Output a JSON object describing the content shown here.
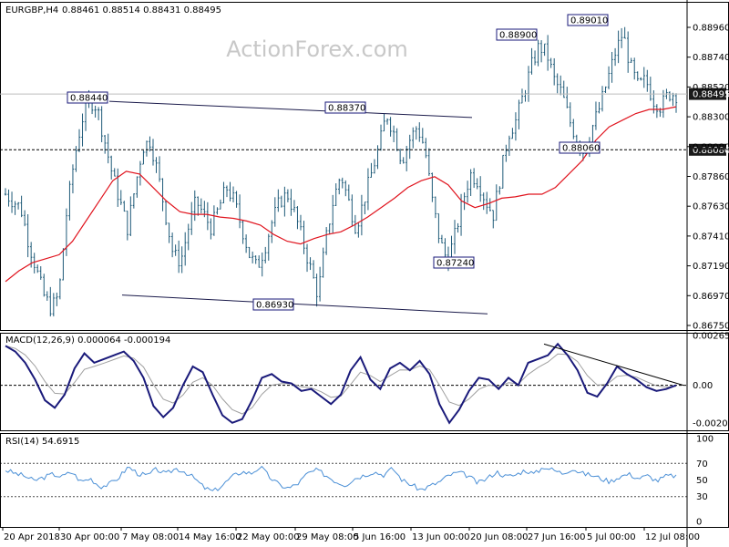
{
  "header": {
    "symbol_label": "EURGBP,H4",
    "ohlc": "0.88461 0.88514 0.88431 0.88495"
  },
  "watermark": "ActionForex.com",
  "colors": {
    "background": "#ffffff",
    "candle": "#1e5a78",
    "moving_average": "#e0141e",
    "macd_line": "#1a1a7a",
    "signal_line": "#a0a0a0",
    "rsi_line": "#4a8fd6",
    "price_tag": "#1a1a1a",
    "annotation_border": "#1a1a7a"
  },
  "chart_data": [
    {
      "type": "candlestick",
      "pair": "EURGBP",
      "timeframe": "H4",
      "ylim": [
        0.8674,
        0.8918
      ],
      "y_ticks": [
        "0.88960",
        "0.88740",
        "0.88520",
        "0.88300",
        "0.88080",
        "0.87860",
        "0.87630",
        "0.87410",
        "0.87190",
        "0.86970",
        "0.86750"
      ],
      "x_ticks": [
        "20 Apr 2018",
        "30 Apr 00:00",
        "7 May 08:00",
        "14 May 16:00",
        "22 May 00:00",
        "29 May 08:00",
        "5 Jun 16:00",
        "13 Jun 00:00",
        "20 Jun 08:00",
        "27 Jun 16:00",
        "5 Jul 00:00",
        "12 Jul 08:00"
      ],
      "closes_approx": [
        0.8775,
        0.877,
        0.8765,
        0.874,
        0.872,
        0.87,
        0.869,
        0.87,
        0.876,
        0.88,
        0.883,
        0.8845,
        0.884,
        0.8815,
        0.879,
        0.877,
        0.875,
        0.878,
        0.881,
        0.8815,
        0.879,
        0.876,
        0.873,
        0.8725,
        0.875,
        0.877,
        0.876,
        0.875,
        0.8765,
        0.878,
        0.877,
        0.875,
        0.873,
        0.872,
        0.8735,
        0.8755,
        0.877,
        0.8775,
        0.876,
        0.874,
        0.872,
        0.87,
        0.874,
        0.877,
        0.879,
        0.877,
        0.875,
        0.877,
        0.879,
        0.881,
        0.8835,
        0.882,
        0.88,
        0.8815,
        0.8825,
        0.881,
        0.877,
        0.874,
        0.8725,
        0.8745,
        0.877,
        0.879,
        0.8785,
        0.877,
        0.876,
        0.879,
        0.882,
        0.883,
        0.885,
        0.887,
        0.8885,
        0.888,
        0.886,
        0.885,
        0.883,
        0.8815,
        0.8805,
        0.8825,
        0.884,
        0.886,
        0.888,
        0.8895,
        0.887,
        0.8855,
        0.886,
        0.8845,
        0.884,
        0.885,
        0.8849
      ],
      "moving_average_approx": [
        0.871,
        0.8718,
        0.8724,
        0.8727,
        0.873,
        0.874,
        0.8755,
        0.877,
        0.8785,
        0.8792,
        0.879,
        0.878,
        0.877,
        0.8762,
        0.876,
        0.876,
        0.8758,
        0.8757,
        0.8755,
        0.8752,
        0.8745,
        0.874,
        0.8738,
        0.8742,
        0.8745,
        0.8747,
        0.8752,
        0.8758,
        0.8765,
        0.8772,
        0.878,
        0.8785,
        0.8788,
        0.8782,
        0.877,
        0.8765,
        0.8768,
        0.8772,
        0.8773,
        0.8775,
        0.8775,
        0.878,
        0.879,
        0.88,
        0.8815,
        0.8825,
        0.883,
        0.8835,
        0.8838,
        0.8838,
        0.884
      ],
      "annotations": [
        {
          "label": "0.88440",
          "x": "25 Apr 2018",
          "y": 0.8844
        },
        {
          "label": "0.88370",
          "x": "5 Jun 2018",
          "y": 0.8837
        },
        {
          "label": "0.86930",
          "x": "29 May 2018",
          "y": 0.8693
        },
        {
          "label": "0.87240",
          "x": "14 Jun 2018",
          "y": 0.8724
        },
        {
          "label": "0.88900",
          "x": "27 Jun 2018",
          "y": 0.889
        },
        {
          "label": "0.89010",
          "x": "5 Jul 2018",
          "y": 0.8901
        },
        {
          "label": "0.88060",
          "x": "6 Jul 2018",
          "y": 0.8806
        }
      ],
      "trendlines": [
        {
          "from": {
            "x": "25 Apr 2018",
            "y": 0.8844
          },
          "to": {
            "x": "19 Jun 2018",
            "y": 0.8832
          }
        },
        {
          "from": {
            "x": "7 May 2018",
            "y": 0.87
          },
          "to": {
            "x": "19 Jun 2018",
            "y": 0.8686
          }
        }
      ],
      "horizontal_lines": [
        0.88495,
        0.8808
      ],
      "price_tags": [
        "0.88495",
        "0.88080"
      ]
    },
    {
      "type": "line",
      "title": "MACD(12,26,9) 0.000064 -0.000194",
      "ylim": [
        -0.0024,
        0.0028
      ],
      "y_ticks": [
        "0.002652",
        "0.00",
        "-0.00202"
      ],
      "macd_approx": [
        0.0021,
        0.0018,
        0.0012,
        0.0003,
        -0.0008,
        -0.0012,
        -0.0005,
        0.0009,
        0.0017,
        0.0012,
        0.0014,
        0.0016,
        0.0018,
        0.0013,
        0.0004,
        -0.0011,
        -0.0017,
        -0.0012,
        0.0,
        0.001,
        0.0007,
        -0.0005,
        -0.0016,
        -0.002,
        -0.0018,
        -0.0008,
        0.0004,
        0.0006,
        0.0002,
        0.0001,
        -0.0003,
        -0.0002,
        -0.0006,
        -0.001,
        -0.0005,
        0.0008,
        0.0015,
        0.0003,
        -0.0002,
        0.0009,
        0.0012,
        0.0008,
        0.0013,
        0.0006,
        -0.001,
        -0.002,
        -0.0013,
        -0.0003,
        0.0004,
        0.0003,
        -0.0002,
        0.0004,
        0.0,
        0.0012,
        0.0014,
        0.0016,
        0.0022,
        0.0016,
        0.0008,
        -0.0004,
        -0.0006,
        0.0001,
        0.001,
        0.0006,
        0.0003,
        -0.0001,
        -0.0003,
        -0.0002,
        0.0
      ],
      "trendline": {
        "from": {
          "x": "27 Jun 2018",
          "y": 0.0022
        },
        "to": {
          "x": "13 Jul 2018",
          "y": 0.0
        }
      }
    },
    {
      "type": "line",
      "title": "RSI(14) 54.6915",
      "ylim": [
        0,
        100
      ],
      "y_ticks": [
        "100",
        "70",
        "50",
        "30",
        "0"
      ],
      "levels": [
        70,
        30
      ],
      "rsi_approx": [
        62,
        58,
        55,
        49,
        53,
        57,
        54,
        60,
        48,
        52,
        42,
        45,
        53,
        66,
        58,
        55,
        63,
        57,
        64,
        60,
        52,
        41,
        36,
        44,
        54,
        60,
        58,
        66,
        53,
        44,
        40,
        46,
        58,
        62,
        55,
        48,
        44,
        52,
        56,
        60,
        56,
        64,
        50,
        44,
        38,
        43,
        48,
        56,
        59,
        55,
        46,
        52,
        60,
        54,
        56,
        62,
        57,
        66,
        62,
        58,
        64,
        58,
        56,
        52,
        48,
        54,
        57,
        52,
        55,
        49,
        55,
        55
      ]
    }
  ]
}
